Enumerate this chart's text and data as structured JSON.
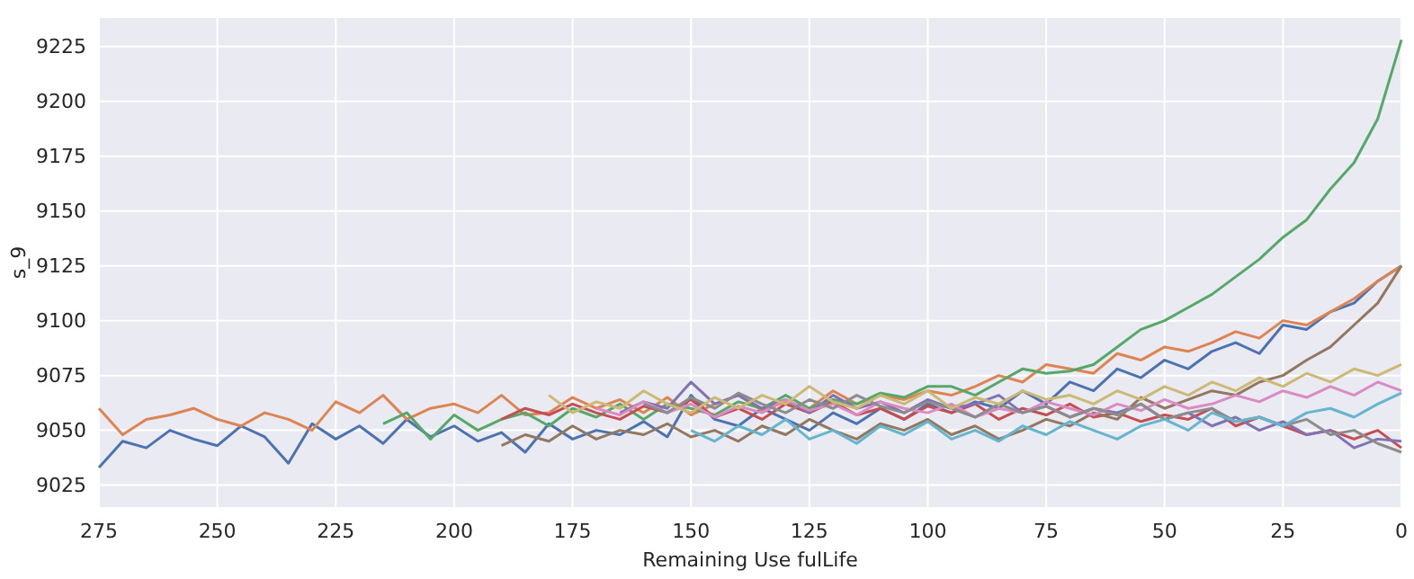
{
  "chart_data": {
    "type": "line",
    "xlabel": "Remaining Use fulLife",
    "ylabel": "s_9",
    "xlim": [
      275,
      0
    ],
    "ylim": [
      9015,
      9238
    ],
    "xticks": [
      275,
      250,
      225,
      200,
      175,
      150,
      125,
      100,
      75,
      50,
      25,
      0
    ],
    "yticks": [
      9025,
      9050,
      9075,
      9100,
      9125,
      9150,
      9175,
      9200,
      9225
    ],
    "grid": true,
    "x": [
      275,
      270,
      265,
      260,
      255,
      250,
      245,
      240,
      235,
      230,
      225,
      220,
      215,
      210,
      205,
      200,
      195,
      190,
      185,
      180,
      175,
      170,
      165,
      160,
      155,
      150,
      145,
      140,
      135,
      130,
      125,
      120,
      115,
      110,
      105,
      100,
      95,
      90,
      85,
      80,
      75,
      70,
      65,
      60,
      55,
      50,
      45,
      40,
      35,
      30,
      25,
      20,
      15,
      10,
      5,
      0
    ],
    "series": [
      {
        "color": "#4c72b0",
        "values": [
          9033,
          9045,
          9042,
          9050,
          9046,
          9043,
          9052,
          9047,
          9035,
          9053,
          9046,
          9052,
          9044,
          9055,
          9047,
          9052,
          9045,
          9049,
          9040,
          9053,
          9046,
          9050,
          9048,
          9054,
          9047,
          9066,
          9055,
          9052,
          9060,
          9055,
          9050,
          9058,
          9053,
          9060,
          9055,
          9062,
          9058,
          9063,
          9060,
          9068,
          9062,
          9072,
          9068,
          9078,
          9074,
          9082,
          9078,
          9086,
          9090,
          9085,
          9098,
          9096,
          9104,
          9108,
          9118,
          9125
        ]
      },
      {
        "color": "#dd8452",
        "values": [
          9060,
          9048,
          9055,
          9057,
          9060,
          9055,
          9052,
          9058,
          9055,
          9050,
          9063,
          9058,
          9066,
          9055,
          9060,
          9062,
          9058,
          9066,
          9057,
          9058,
          9065,
          9060,
          9064,
          9058,
          9065,
          9057,
          9062,
          9066,
          9059,
          9063,
          9060,
          9068,
          9062,
          9066,
          9064,
          9068,
          9066,
          9070,
          9075,
          9072,
          9080,
          9078,
          9076,
          9085,
          9082,
          9088,
          9086,
          9090,
          9095,
          9092,
          9100,
          9098,
          9104,
          9110,
          9118,
          9125
        ]
      },
      {
        "color": "#55a868",
        "values": [
          null,
          null,
          null,
          null,
          null,
          null,
          null,
          null,
          null,
          null,
          null,
          null,
          9053,
          9058,
          9046,
          9057,
          9050,
          9055,
          9058,
          9052,
          9060,
          9056,
          9062,
          9055,
          9062,
          9060,
          9057,
          9063,
          9060,
          9066,
          9060,
          9064,
          9062,
          9067,
          9065,
          9070,
          9070,
          9066,
          9072,
          9078,
          9076,
          9077,
          9080,
          9088,
          9096,
          9100,
          9106,
          9112,
          9120,
          9128,
          9138,
          9146,
          9160,
          9172,
          9192,
          9228
        ]
      },
      {
        "color": "#c44e52",
        "values": [
          null,
          null,
          null,
          null,
          null,
          null,
          null,
          null,
          null,
          null,
          null,
          null,
          null,
          null,
          null,
          null,
          null,
          9055,
          9060,
          9057,
          9062,
          9058,
          9055,
          9061,
          9058,
          9064,
          9056,
          9060,
          9055,
          9062,
          9058,
          9063,
          9057,
          9060,
          9055,
          9061,
          9058,
          9062,
          9055,
          9060,
          9057,
          9062,
          9056,
          9058,
          9054,
          9057,
          9055,
          9060,
          9052,
          9056,
          9052,
          9048,
          9050,
          9046,
          9050,
          9042
        ]
      },
      {
        "color": "#8172b3",
        "values": [
          null,
          null,
          null,
          null,
          null,
          null,
          null,
          null,
          null,
          null,
          null,
          null,
          null,
          null,
          null,
          null,
          null,
          null,
          null,
          null,
          null,
          null,
          9058,
          9063,
          9060,
          9072,
          9062,
          9066,
          9060,
          9064,
          9058,
          9066,
          9060,
          9063,
          9058,
          9064,
          9060,
          9062,
          9066,
          9058,
          9061,
          9056,
          9060,
          9058,
          9062,
          9055,
          9058,
          9052,
          9056,
          9050,
          9054,
          9048,
          9050,
          9042,
          9046,
          9045
        ]
      },
      {
        "color": "#937860",
        "values": [
          null,
          null,
          null,
          null,
          null,
          null,
          null,
          null,
          null,
          null,
          null,
          null,
          null,
          null,
          null,
          null,
          null,
          9043,
          9048,
          9045,
          9052,
          9046,
          9050,
          9048,
          9053,
          9047,
          9050,
          9045,
          9052,
          9048,
          9055,
          9050,
          9046,
          9053,
          9050,
          9055,
          9048,
          9052,
          9046,
          9050,
          9055,
          9052,
          9058,
          9055,
          9065,
          9060,
          9064,
          9068,
          9066,
          9072,
          9075,
          9082,
          9088,
          9098,
          9108,
          9125
        ]
      },
      {
        "color": "#da8bc3",
        "values": [
          null,
          null,
          null,
          null,
          null,
          null,
          null,
          null,
          null,
          null,
          null,
          null,
          null,
          null,
          null,
          null,
          null,
          null,
          null,
          null,
          null,
          9060,
          9057,
          9063,
          9058,
          9062,
          9056,
          9061,
          9058,
          9064,
          9059,
          9062,
          9057,
          9063,
          9060,
          9058,
          9062,
          9056,
          9060,
          9058,
          9063,
          9060,
          9057,
          9062,
          9059,
          9064,
          9060,
          9062,
          9066,
          9063,
          9068,
          9065,
          9070,
          9066,
          9072,
          9068
        ]
      },
      {
        "color": "#8c8c8c",
        "values": [
          null,
          null,
          null,
          null,
          null,
          null,
          null,
          null,
          null,
          null,
          null,
          null,
          null,
          null,
          null,
          null,
          null,
          null,
          null,
          null,
          null,
          null,
          null,
          9062,
          9058,
          9065,
          9060,
          9067,
          9062,
          9058,
          9064,
          9060,
          9066,
          9061,
          9058,
          9063,
          9060,
          9056,
          9062,
          9058,
          9061,
          9056,
          9060,
          9057,
          9062,
          9055,
          9058,
          9060,
          9054,
          9056,
          9052,
          9055,
          9048,
          9050,
          9044,
          9040
        ]
      },
      {
        "color": "#ccb974",
        "values": [
          null,
          null,
          null,
          null,
          null,
          null,
          null,
          null,
          null,
          null,
          null,
          null,
          null,
          null,
          null,
          null,
          null,
          null,
          null,
          9066,
          9058,
          9063,
          9060,
          9068,
          9062,
          9058,
          9065,
          9060,
          9066,
          9062,
          9070,
          9063,
          9060,
          9066,
          9062,
          9068,
          9060,
          9065,
          9062,
          9068,
          9064,
          9066,
          9062,
          9068,
          9064,
          9070,
          9066,
          9072,
          9068,
          9074,
          9070,
          9076,
          9072,
          9078,
          9075,
          9080
        ]
      },
      {
        "color": "#64b5cd",
        "values": [
          null,
          null,
          null,
          null,
          null,
          null,
          null,
          null,
          null,
          null,
          null,
          null,
          null,
          null,
          null,
          null,
          null,
          null,
          null,
          null,
          null,
          null,
          null,
          null,
          null,
          9050,
          9045,
          9052,
          9048,
          9055,
          9046,
          9050,
          9044,
          9052,
          9048,
          9054,
          9046,
          9050,
          9045,
          9052,
          9048,
          9054,
          9050,
          9046,
          9052,
          9055,
          9050,
          9058,
          9054,
          9056,
          9052,
          9058,
          9060,
          9056,
          9062,
          9067
        ]
      }
    ]
  }
}
